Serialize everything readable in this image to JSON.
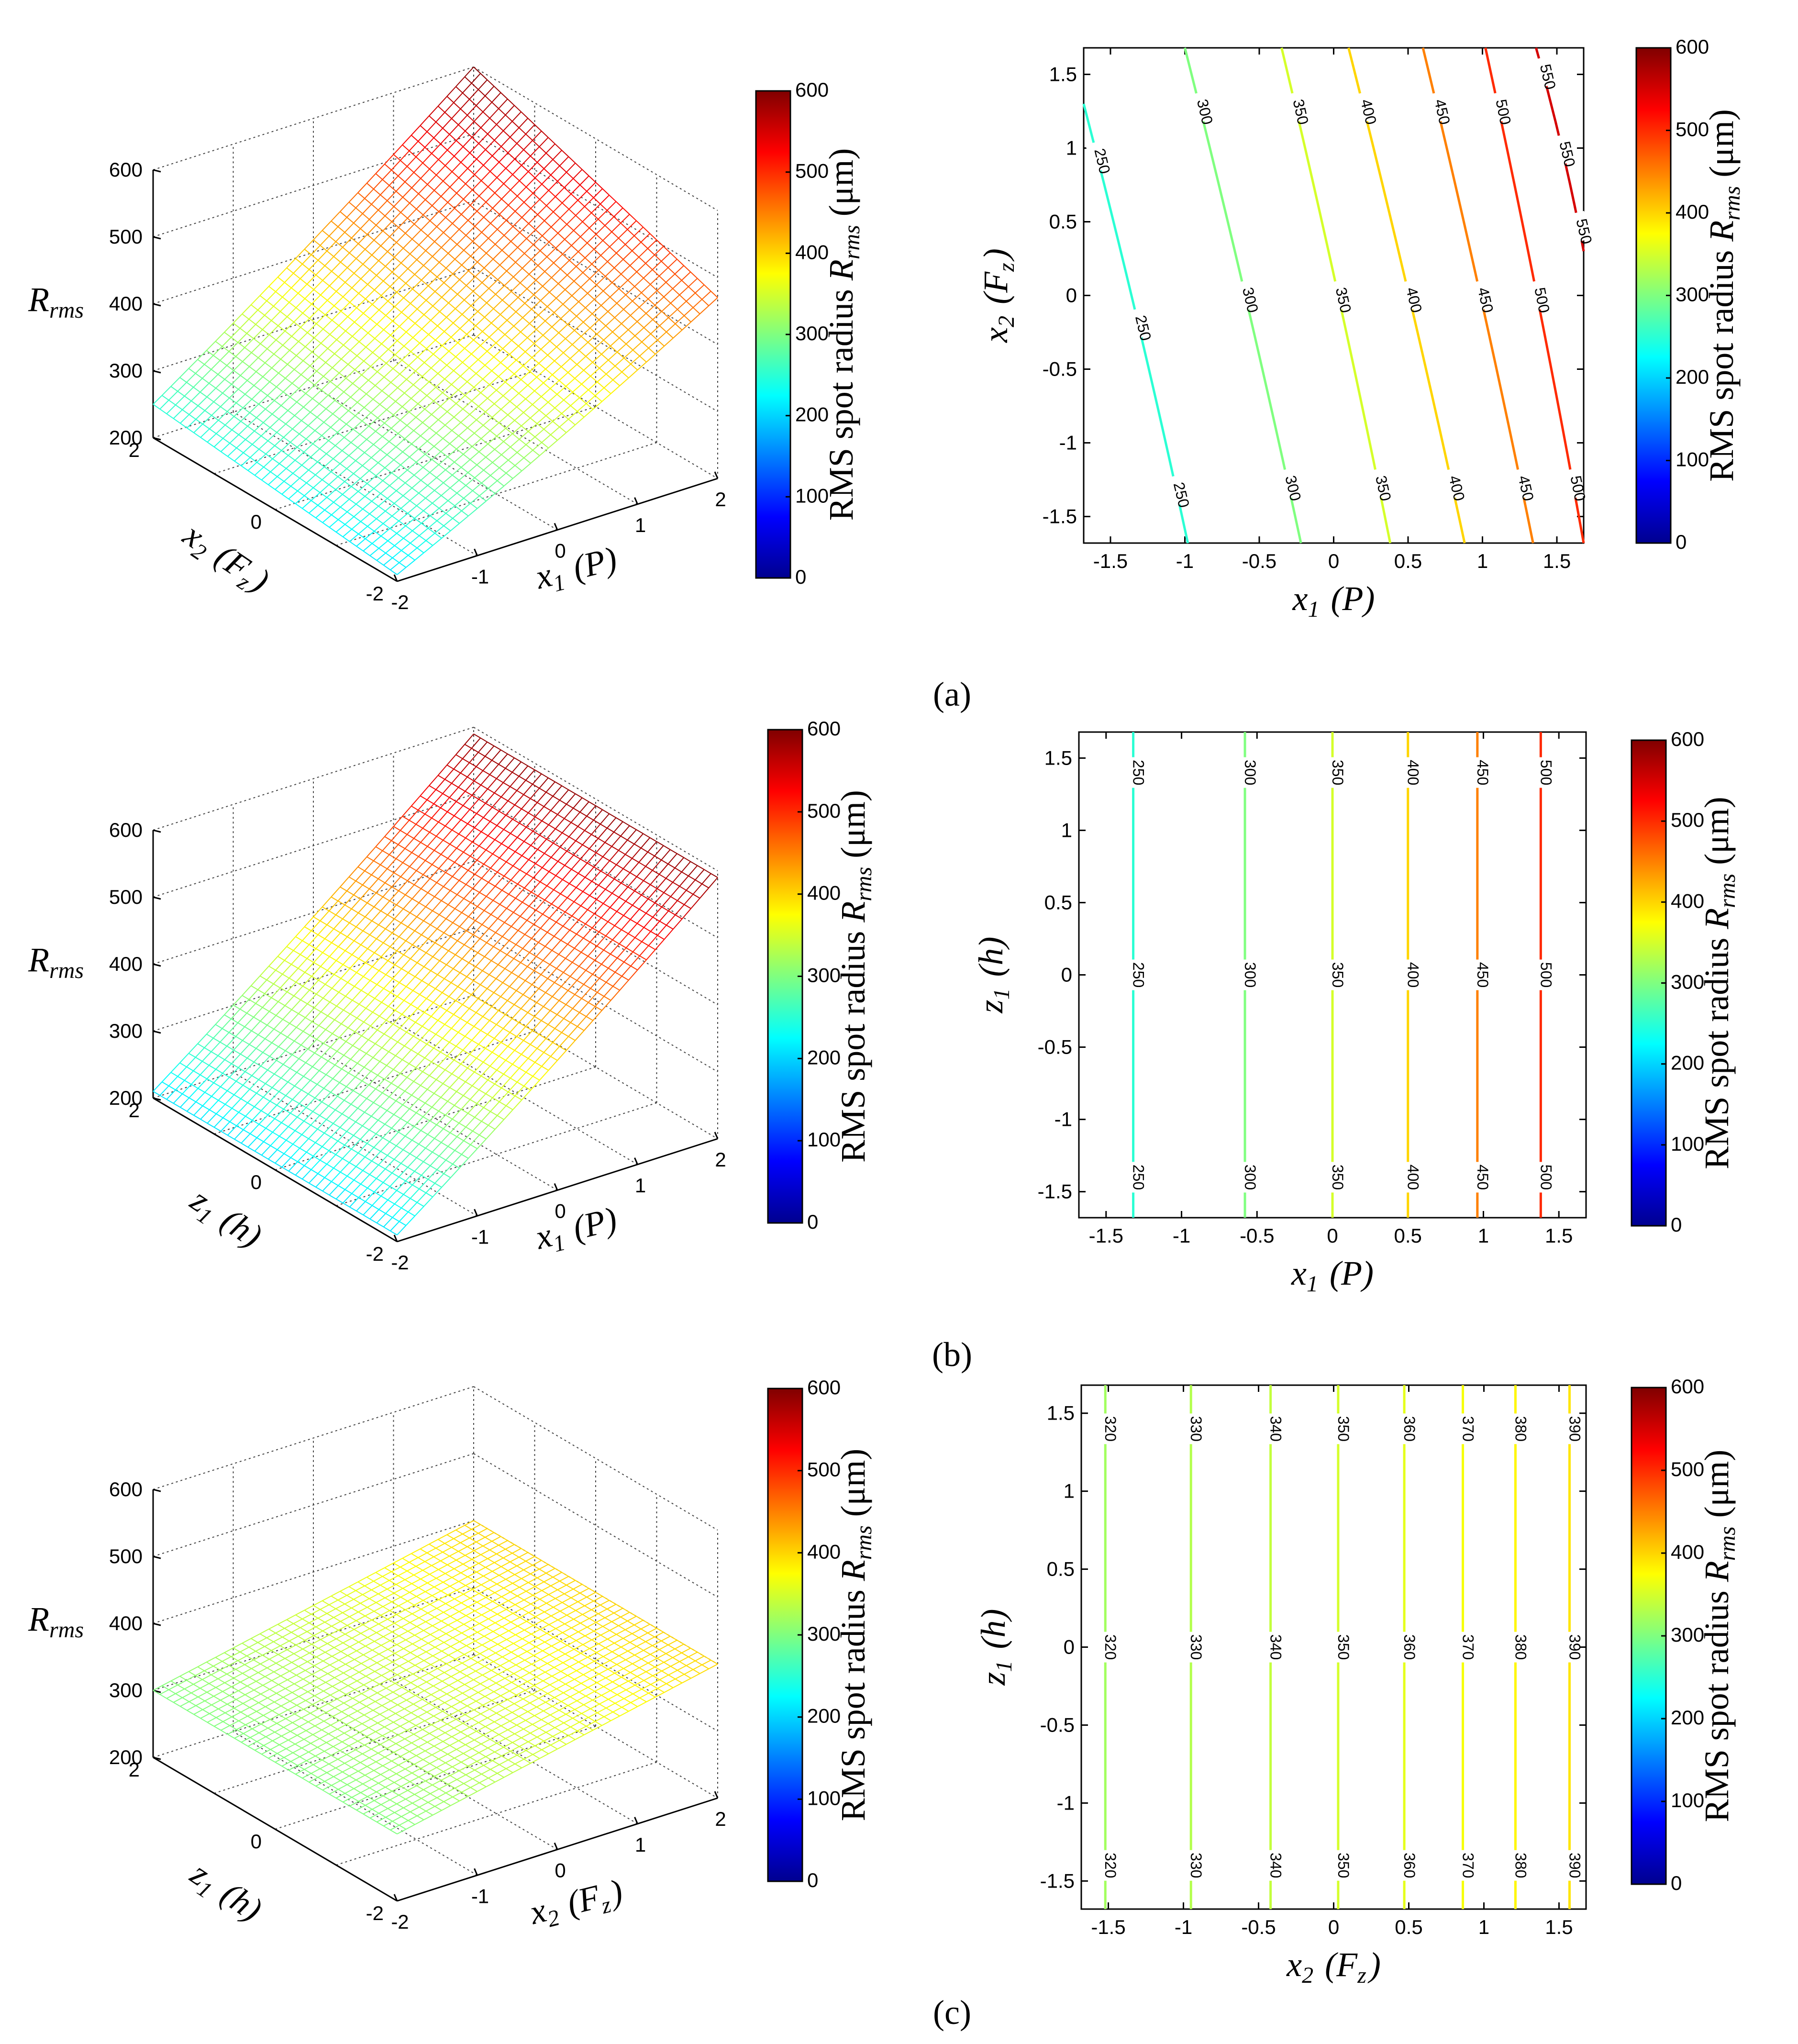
{
  "figure": {
    "panels": [
      {
        "id": "a",
        "label": "(a)",
        "surface": {
          "z_label": "R",
          "z_sub": "rms",
          "x_label": "x",
          "x_sub": "1",
          "x_par": "(P)",
          "y_label": "x",
          "y_sub": "2",
          "y_par": "(F",
          "y_par_sub": "z",
          "y_par_end": ")",
          "z_ticks": [
            "200",
            "300",
            "400",
            "500",
            "600"
          ],
          "x_ticks": [
            "-2",
            "-1",
            "0",
            "1",
            "2"
          ],
          "y_ticks": [
            "-2",
            "0",
            "2"
          ]
        },
        "colorbar": {
          "label": "RMS spot radius ",
          "label_var": "R",
          "label_sub": "rms",
          "label_unit": " (μm)",
          "ticks": [
            "0",
            "100",
            "200",
            "300",
            "400",
            "500",
            "600"
          ]
        },
        "contour": {
          "x_label": "x",
          "x_sub": "1",
          "x_par": " (P)",
          "y_label": "x",
          "y_sub": "2",
          "y_par": " (F",
          "y_par_sub": "z",
          "y_par_end": ")",
          "x_ticks": [
            "-1.5",
            "-1",
            "-0.5",
            "0",
            "0.5",
            "1",
            "1.5"
          ],
          "y_ticks": [
            "-1.5",
            "-1",
            "-0.5",
            "0",
            "0.5",
            "1",
            "1.5"
          ]
        },
        "colorbar2": {
          "label": "RMS spot radius ",
          "label_var": "R",
          "label_sub": "rms",
          "label_unit": " (μm)",
          "ticks": [
            "0",
            "100",
            "200",
            "300",
            "400",
            "500",
            "600"
          ]
        }
      },
      {
        "id": "b",
        "label": "(b)",
        "surface": {
          "z_label": "R",
          "z_sub": "rms",
          "x_label": "x",
          "x_sub": "1",
          "x_par": "(P)",
          "y_label": "z",
          "y_sub": "1",
          "y_par": "(h)",
          "y_par_sub": "",
          "y_par_end": "",
          "z_ticks": [
            "200",
            "300",
            "400",
            "500",
            "600"
          ],
          "x_ticks": [
            "-2",
            "-1",
            "0",
            "1",
            "2"
          ],
          "y_ticks": [
            "-2",
            "0",
            "2"
          ]
        },
        "colorbar": {
          "label": "RMS spot radius ",
          "label_var": "R",
          "label_sub": "rms",
          "label_unit": " (μm)",
          "ticks": [
            "0",
            "100",
            "200",
            "300",
            "400",
            "500",
            "600"
          ]
        },
        "contour": {
          "x_label": "x",
          "x_sub": "1",
          "x_par": " (P)",
          "y_label": "z",
          "y_sub": "1",
          "y_par": " (h)",
          "y_par_sub": "",
          "y_par_end": "",
          "x_ticks": [
            "-1.5",
            "-1",
            "-0.5",
            "0",
            "0.5",
            "1",
            "1.5"
          ],
          "y_ticks": [
            "-1.5",
            "-1",
            "-0.5",
            "0",
            "0.5",
            "1",
            "1.5"
          ]
        },
        "colorbar2": {
          "label": "RMS spot radius ",
          "label_var": "R",
          "label_sub": "rms",
          "label_unit": " (μm)",
          "ticks": [
            "0",
            "100",
            "200",
            "300",
            "400",
            "500",
            "600"
          ]
        }
      },
      {
        "id": "c",
        "label": "(c)",
        "surface": {
          "z_label": "R",
          "z_sub": "rms",
          "x_label": "x",
          "x_sub": "2",
          "x_par": "(F",
          "x_par_sub": "z",
          "x_par_end": ")",
          "y_label": "z",
          "y_sub": "1",
          "y_par": "(h)",
          "y_par_sub": "",
          "y_par_end": "",
          "z_ticks": [
            "200",
            "300",
            "400",
            "500",
            "600"
          ],
          "x_ticks": [
            "-2",
            "-1",
            "0",
            "1",
            "2"
          ],
          "y_ticks": [
            "-2",
            "0",
            "2"
          ]
        },
        "colorbar": {
          "label": "RMS spot radius ",
          "label_var": "R",
          "label_sub": "rms",
          "label_unit": " (μm)",
          "ticks": [
            "0",
            "100",
            "200",
            "300",
            "400",
            "500",
            "600"
          ]
        },
        "contour": {
          "x_label": "x",
          "x_sub": "2",
          "x_par": " (F",
          "x_par_sub": "z",
          "x_par_end": ")",
          "y_label": "z",
          "y_sub": "1",
          "y_par": " (h)",
          "y_par_sub": "",
          "y_par_end": "",
          "x_ticks": [
            "-1.5",
            "-1",
            "-0.5",
            "0",
            "0.5",
            "1",
            "1.5"
          ],
          "y_ticks": [
            "-1.5",
            "-1",
            "-0.5",
            "0",
            "0.5",
            "1",
            "1.5"
          ]
        },
        "colorbar2": {
          "label": "RMS spot radius ",
          "label_var": "R",
          "label_sub": "rms",
          "label_unit": " (μm)",
          "ticks": [
            "0",
            "100",
            "200",
            "300",
            "400",
            "500",
            "600"
          ]
        }
      }
    ]
  },
  "chart_data": [
    {
      "panel": "a",
      "type": "surface",
      "x_variable": "x1 (P)",
      "y_variable": "x2 (Fz)",
      "z_variable": "Rrms",
      "x_range": [
        -2,
        2
      ],
      "y_range": [
        -2,
        2
      ],
      "zlim": [
        200,
        600
      ],
      "corner_values": {
        "x1=-2,x2=-2": 210,
        "x1=2,x2=-2": 470,
        "x1=-2,x2=2": 250,
        "x1=2,x2=2": 600
      },
      "colormap": "jet",
      "clim": [
        0,
        600
      ]
    },
    {
      "panel": "a",
      "type": "contour",
      "x_variable": "x1 (P)",
      "y_variable": "x2 (Fz)",
      "xlim": [
        -1.68,
        1.68
      ],
      "ylim": [
        -1.68,
        1.68
      ],
      "levels": [
        250,
        300,
        350,
        400,
        450,
        500,
        550
      ],
      "level_lines": [
        {
          "level": 250,
          "x_at_ytop": -1.68,
          "x_at_ybottom": -0.98
        },
        {
          "level": 300,
          "x_at_ytop": -1.0,
          "x_at_ybottom": -0.22
        },
        {
          "level": 350,
          "x_at_ytop": -0.35,
          "x_at_ybottom": 0.38
        },
        {
          "level": 400,
          "x_at_ytop": 0.1,
          "x_at_ybottom": 0.88
        },
        {
          "level": 450,
          "x_at_ytop": 0.6,
          "x_at_ybottom": 1.34
        },
        {
          "level": 500,
          "x_at_ytop": 1.02,
          "x_at_ybottom": 1.68
        },
        {
          "level": 550,
          "x_at_ytop": 1.36,
          "x_at_ybottom": 1.68,
          "y_at_xright": 0.3
        }
      ],
      "colormap": "jet",
      "clim": [
        0,
        600
      ]
    },
    {
      "panel": "b",
      "type": "surface",
      "x_variable": "x1 (P)",
      "y_variable": "z1 (h)",
      "z_variable": "Rrms",
      "x_range": [
        -2,
        2
      ],
      "y_range": [
        -2,
        2
      ],
      "zlim": [
        200,
        600
      ],
      "corner_values": {
        "x1=-2,z1=-2": 210,
        "x1=2,z1=-2": 590,
        "x1=-2,z1=2": 210,
        "x1=2,z1=2": 590
      },
      "colormap": "jet",
      "clim": [
        0,
        600
      ]
    },
    {
      "panel": "b",
      "type": "contour",
      "x_variable": "x1 (P)",
      "y_variable": "z1 (h)",
      "xlim": [
        -1.68,
        1.68
      ],
      "ylim": [
        -1.68,
        1.68
      ],
      "levels": [
        250,
        300,
        350,
        400,
        450,
        500
      ],
      "level_x": [
        -1.32,
        -0.58,
        0.0,
        0.5,
        0.96,
        1.38
      ],
      "colormap": "jet",
      "clim": [
        0,
        600
      ]
    },
    {
      "panel": "c",
      "type": "surface",
      "x_variable": "x2 (Fz)",
      "y_variable": "z1 (h)",
      "z_variable": "Rrms",
      "x_range": [
        -2,
        2
      ],
      "y_range": [
        -2,
        2
      ],
      "zlim": [
        200,
        600
      ],
      "corner_values": {
        "x2=-2,z1=-2": 300,
        "x2=2,z1=-2": 400,
        "x2=-2,z1=2": 300,
        "x2=2,z1=2": 400
      },
      "colormap": "jet",
      "clim": [
        0,
        600
      ]
    },
    {
      "panel": "c",
      "type": "contour",
      "x_variable": "x2 (Fz)",
      "y_variable": "z1 (h)",
      "xlim": [
        -1.68,
        1.68
      ],
      "ylim": [
        -1.68,
        1.68
      ],
      "levels": [
        320,
        330,
        340,
        350,
        360,
        370,
        380,
        390
      ],
      "level_x": [
        -1.52,
        -0.95,
        -0.42,
        0.03,
        0.47,
        0.86,
        1.21,
        1.57
      ],
      "colormap": "jet",
      "clim": [
        0,
        600
      ]
    }
  ]
}
